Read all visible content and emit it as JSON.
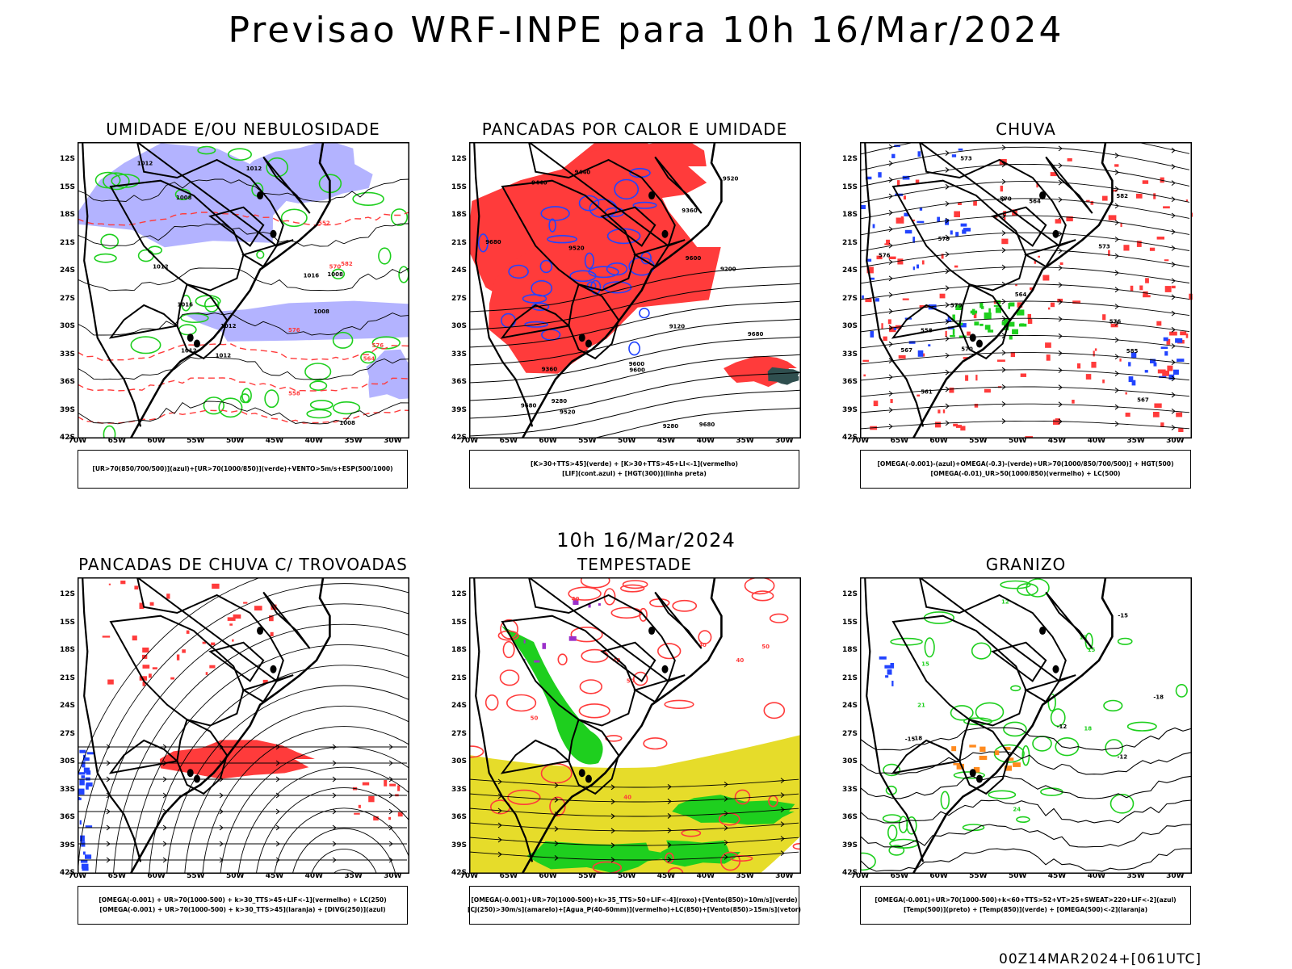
{
  "header": {
    "title": "Previsao WRF-INPE  para 10h 16/Mar/2024",
    "row_label": "10h 16/Mar/2024",
    "footer_run": "00Z14MAR2024+[061UTC]"
  },
  "axes": {
    "lat_ticks": [
      "12S",
      "15S",
      "18S",
      "21S",
      "24S",
      "27S",
      "30S",
      "33S",
      "36S",
      "39S",
      "42S"
    ],
    "lon_ticks": [
      "70W",
      "65W",
      "60W",
      "55W",
      "50W",
      "45W",
      "40W",
      "35W",
      "30W"
    ]
  },
  "colors": {
    "land_border": "#000000",
    "humidity_fill": "#b3b3ff",
    "red": "#ff3b3b",
    "green": "#1ecf1e",
    "blue": "#2244ff",
    "yellow": "#e6dc2a",
    "orange": "#ff8a1e",
    "dark": "#2f4f4f"
  },
  "panels": [
    {
      "id": "umidade",
      "title": "UMIDADE E/OU NEBULOSIDADE",
      "legend": [
        "[UR>70(850/700/500)](azul)+[UR>70(1000/850)](verde)+VENTO>5m/s+ESP(500/1000)"
      ],
      "labels": [
        "1012",
        "1012",
        "1012",
        "1008",
        "1008",
        "1008",
        "1012",
        "1016",
        "1012",
        "1016",
        "1008",
        "1012",
        "576",
        "576",
        "570",
        "564",
        "558",
        "552",
        "582"
      ]
    },
    {
      "id": "pancadas-calor",
      "title": "PANCADAS POR CALOR E UMIDADE",
      "legend": [
        "[K>30+TTS>45](verde) + [K>30+TTS>45+LI<-1](vermelho)",
        "[LIF](cont.azul) + [HGT(300)](linha preta)"
      ],
      "labels": [
        "9680",
        "9680",
        "9600",
        "9680",
        "9600",
        "9520",
        "9440",
        "9360",
        "9280",
        "9200",
        "9120",
        "9520",
        "9680",
        "9600",
        "9520",
        "9440",
        "9360",
        "9280"
      ]
    },
    {
      "id": "chuva",
      "title": "CHUVA",
      "legend": [
        "[OMEGA(-0.001)-(azul)+OMEGA(-0.3)-(verde)+UR>70(1000/850/700/500)] + HGT(500)",
        "[OMEGA(-0.01)_UR>50(1000/850)(vermelho) + LC(500)"
      ],
      "labels": [
        "585",
        "582",
        "579",
        "576",
        "573",
        "570",
        "567",
        "564",
        "579",
        "576",
        "573",
        "570",
        "567",
        "564",
        "561",
        "558"
      ]
    },
    {
      "id": "pancadas-trovoadas",
      "title": "PANCADAS DE CHUVA C/ TROVOADAS",
      "legend": [
        "[OMEGA(-0.001) + UR>70(1000-500) + k>30_TTS>45+LIF<-1](vermelho) + LC(250)",
        "[OMEGA(-0.001) + UR>70(1000-500) + k>30_TTS>45](laranja) + [DIVG(250)](azul)"
      ],
      "labels": []
    },
    {
      "id": "tempestade",
      "title": "TEMPESTADE",
      "legend": [
        "[OMEGA(-0.001)+UR>70(1000-500)+k>35_TTS>50+LIF<-4](roxo)+[Vento(850)>10m/s](verde)",
        "[CJ(250)>30m/s](amarelo)+[Agua_P(40-60mm)](vermelho)+LC(850)+[Vento(850)>15m/s](vetor)"
      ],
      "labels": [
        "50",
        "40",
        "50",
        "40",
        "40",
        "50",
        "40",
        "40"
      ]
    },
    {
      "id": "granizo",
      "title": "GRANIZO",
      "legend": [
        "[OMEGA(-0.001)+UR>70(1000-500)+k<60+TTS>52+VT>25+SWEAT>220+LIF<-2](azul)",
        "[Temp(500)](preto) + [Temp(850)](verde) + [OMEGA(500)<-2](laranja)"
      ],
      "labels": [
        "-12",
        "-12",
        "-15",
        "-15",
        "-18",
        "-18",
        "12",
        "12",
        "15",
        "15",
        "18",
        "21",
        "24"
      ]
    }
  ]
}
